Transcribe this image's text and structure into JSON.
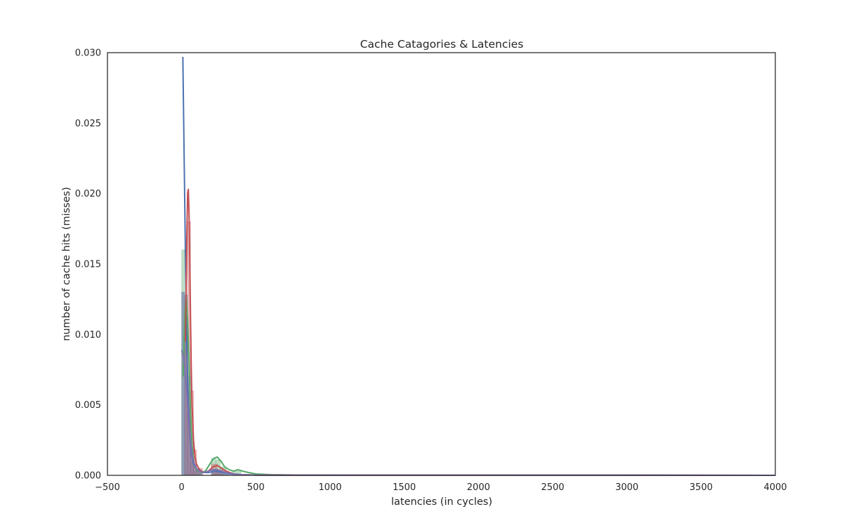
{
  "chart_data": {
    "type": "area",
    "title": "Cache Catagories & Latencies",
    "xlabel": "latencies (in cycles)",
    "ylabel": "number of cache hits (misses)",
    "xlim": [
      -500,
      4000
    ],
    "ylim": [
      0,
      0.03
    ],
    "xticks": [
      "−500",
      "0",
      "500",
      "1000",
      "1500",
      "2000",
      "2500",
      "3000",
      "3500",
      "4000"
    ],
    "xtick_values": [
      -500,
      0,
      500,
      1000,
      1500,
      2000,
      2500,
      3000,
      3500,
      4000
    ],
    "yticks": [
      "0.000",
      "0.005",
      "0.010",
      "0.015",
      "0.020",
      "0.025",
      "0.030"
    ],
    "ytick_values": [
      0,
      0.005,
      0.01,
      0.015,
      0.02,
      0.025,
      0.03
    ],
    "grid": false,
    "legend": "none",
    "histograms": [
      {
        "color": "#4C72B0",
        "bins": [
          [
            0,
            20,
            0.013
          ],
          [
            20,
            40,
            0.0115
          ],
          [
            40,
            60,
            0.005
          ],
          [
            60,
            80,
            0.002
          ],
          [
            80,
            100,
            0.0008
          ],
          [
            100,
            140,
            0.0003
          ],
          [
            210,
            260,
            0.0002
          ],
          [
            260,
            320,
            0.0001
          ]
        ]
      },
      {
        "color": "#55A868",
        "bins": [
          [
            0,
            20,
            0.016
          ],
          [
            20,
            40,
            0.0115
          ],
          [
            40,
            60,
            0.006
          ],
          [
            60,
            80,
            0.001
          ],
          [
            80,
            120,
            0.0003
          ],
          [
            200,
            230,
            0.0012
          ],
          [
            230,
            260,
            0.0011
          ],
          [
            260,
            300,
            0.0006
          ],
          [
            340,
            400,
            0.0003
          ]
        ]
      },
      {
        "color": "#C44E52",
        "bins": [
          [
            20,
            40,
            0.01
          ],
          [
            40,
            60,
            0.018
          ],
          [
            60,
            80,
            0.006
          ],
          [
            80,
            100,
            0.0018
          ],
          [
            100,
            140,
            0.0005
          ],
          [
            200,
            240,
            0.0008
          ],
          [
            240,
            280,
            0.0004
          ]
        ]
      },
      {
        "color": "#8172B2",
        "bins": [
          [
            0,
            20,
            0.013
          ],
          [
            20,
            40,
            0.0128
          ],
          [
            40,
            60,
            0.007
          ],
          [
            60,
            80,
            0.003
          ],
          [
            80,
            100,
            0.0008
          ],
          [
            100,
            140,
            0.0003
          ],
          [
            200,
            260,
            0.0004
          ],
          [
            260,
            320,
            0.0002
          ]
        ]
      }
    ],
    "series": [
      {
        "color": "#4C72B0",
        "x": [
          8,
          15,
          25,
          35,
          45,
          55,
          65,
          80,
          100,
          130,
          180,
          230,
          280,
          330,
          400,
          500,
          600,
          1000,
          2000,
          4000
        ],
        "y": [
          0.0297,
          0.024,
          0.016,
          0.009,
          0.005,
          0.0028,
          0.0016,
          0.0008,
          0.0004,
          0.0002,
          0.0002,
          0.0003,
          0.0002,
          0.0001,
          5e-05,
          2e-05,
          1e-05,
          1e-05,
          1e-05,
          0.0
        ]
      },
      {
        "color": "#55A868",
        "x": [
          10,
          20,
          30,
          40,
          50,
          60,
          70,
          85,
          100,
          130,
          160,
          190,
          215,
          240,
          265,
          290,
          320,
          350,
          380,
          410,
          450,
          500,
          600,
          800,
          1200,
          2000,
          3000,
          3700,
          4000
        ],
        "y": [
          0.007,
          0.0112,
          0.013,
          0.011,
          0.008,
          0.0045,
          0.002,
          0.0008,
          0.0004,
          0.0002,
          0.0003,
          0.0008,
          0.0012,
          0.0013,
          0.001,
          0.0006,
          0.0004,
          0.0003,
          0.0004,
          0.0003,
          0.0002,
          0.0001,
          5e-05,
          2e-05,
          1e-05,
          1e-05,
          1e-05,
          0.0,
          0.0
        ]
      },
      {
        "color": "#C44E52",
        "x": [
          25,
          30,
          35,
          40,
          45,
          50,
          55,
          60,
          65,
          70,
          80,
          90,
          100,
          120,
          150,
          180,
          210,
          240,
          270,
          300,
          350,
          400,
          500,
          700,
          1000,
          2000,
          3000,
          4000
        ],
        "y": [
          0.0095,
          0.013,
          0.017,
          0.02,
          0.0203,
          0.0185,
          0.015,
          0.011,
          0.0075,
          0.005,
          0.0025,
          0.0013,
          0.0008,
          0.0004,
          0.0002,
          0.0003,
          0.0006,
          0.0007,
          0.0005,
          0.0003,
          0.0001,
          5e-05,
          2e-05,
          1e-05,
          1e-05,
          1e-05,
          1e-05,
          0.0
        ]
      },
      {
        "color": "#8172B2",
        "x": [
          0,
          10,
          20,
          30,
          40,
          50,
          60,
          70,
          80,
          90,
          100,
          120,
          150,
          180,
          210,
          240,
          270,
          300,
          350,
          400,
          500,
          700,
          1000,
          2000,
          3000,
          4000
        ],
        "y": [
          0.0089,
          0.0085,
          0.0078,
          0.0065,
          0.005,
          0.0035,
          0.0024,
          0.0015,
          0.001,
          0.0007,
          0.0005,
          0.0003,
          0.0002,
          0.0003,
          0.0004,
          0.0004,
          0.0003,
          0.0002,
          0.0001,
          5e-05,
          2e-05,
          1e-05,
          1e-05,
          1e-05,
          1e-05,
          0.0
        ]
      }
    ]
  }
}
